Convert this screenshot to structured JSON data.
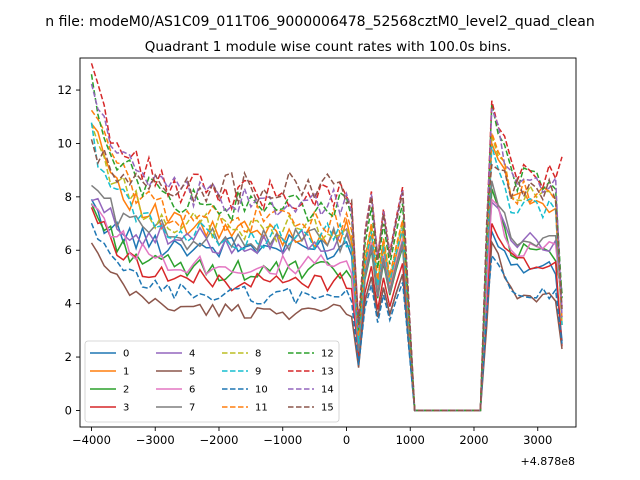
{
  "chart_data": {
    "type": "line",
    "suptitle": "n file: modeM0/AS1C09_011T06_9000006478_52568cztM0_level2_quad_clean",
    "title": "Quadrant 1 module wise count rates with 100.0s bins.",
    "xlabel": "",
    "ylabel": "",
    "x_offset_label": "+4.878e8",
    "xlim": [
      -4180,
      3600
    ],
    "ylim": [
      -0.62,
      13.2
    ],
    "xticks": [
      -4000,
      -3000,
      -2000,
      -1000,
      0,
      1000,
      2000,
      3000
    ],
    "xtick_labels": [
      "−4000",
      "−3000",
      "−2000",
      "−1000",
      "0",
      "1000",
      "2000",
      "3000"
    ],
    "yticks": [
      0,
      2,
      4,
      6,
      8,
      10,
      12
    ],
    "ytick_labels": [
      "0",
      "2",
      "4",
      "6",
      "8",
      "10",
      "12"
    ],
    "grid": false,
    "legend": {
      "placement": "lower-left",
      "ncol": 4
    },
    "series": [
      {
        "name": "0",
        "color": "#1f77b4",
        "dash": "solid",
        "level": 6.1,
        "start": 7.5,
        "dip": 1.8,
        "dropv": 5.0,
        "peak": 6.7,
        "tail": 5.3,
        "end": 2.6
      },
      {
        "name": "1",
        "color": "#ff7f0e",
        "dash": "solid",
        "level": 6.6,
        "start": 11.2,
        "dip": 2.6,
        "dropv": 6.6,
        "peak": 10.0,
        "tail": 7.8,
        "end": 3.2
      },
      {
        "name": "2",
        "color": "#2ca02c",
        "dash": "solid",
        "level": 5.2,
        "start": 7.7,
        "dip": 2.1,
        "dropv": 6.0,
        "peak": 8.3,
        "tail": 5.9,
        "end": 4.4
      },
      {
        "name": "3",
        "color": "#d62728",
        "dash": "solid",
        "level": 4.8,
        "start": 7.7,
        "dip": 2.0,
        "dropv": 5.4,
        "peak": 7.0,
        "tail": 5.6,
        "end": 2.4
      },
      {
        "name": "4",
        "color": "#9467bd",
        "dash": "solid",
        "level": 6.3,
        "start": 7.9,
        "dip": 2.3,
        "dropv": 6.1,
        "peak": 7.8,
        "tail": 6.3,
        "end": 3.9
      },
      {
        "name": "5",
        "color": "#8c564b",
        "dash": "solid",
        "level": 3.7,
        "start": 6.2,
        "dip": 1.6,
        "dropv": 5.0,
        "peak": 6.3,
        "tail": 4.3,
        "end": 2.3
      },
      {
        "name": "6",
        "color": "#e377c2",
        "dash": "solid",
        "level": 5.4,
        "start": 8.0,
        "dip": 2.3,
        "dropv": 6.3,
        "peak": 7.9,
        "tail": 6.1,
        "end": 3.9
      },
      {
        "name": "7",
        "color": "#7f7f7f",
        "dash": "solid",
        "level": 6.4,
        "start": 8.6,
        "dip": 2.2,
        "dropv": 6.2,
        "peak": 8.6,
        "tail": 6.2,
        "end": 4.4
      },
      {
        "name": "8",
        "color": "#bcbd22",
        "dash": "dashed",
        "level": 6.8,
        "start": 10.7,
        "dip": 2.7,
        "dropv": 6.9,
        "peak": 10.3,
        "tail": 8.0,
        "end": 3.3
      },
      {
        "name": "9",
        "color": "#17becf",
        "dash": "dashed",
        "level": 6.5,
        "start": 10.3,
        "dip": 2.5,
        "dropv": 6.7,
        "peak": 9.9,
        "tail": 7.6,
        "end": 3.2
      },
      {
        "name": "10",
        "color": "#1f77b4",
        "dash": "dashed",
        "level": 4.3,
        "start": 6.8,
        "dip": 1.7,
        "dropv": 4.7,
        "peak": 5.8,
        "tail": 4.4,
        "end": 2.5
      },
      {
        "name": "11",
        "color": "#ff7f0e",
        "dash": "dashed",
        "level": 7.1,
        "start": 11.6,
        "dip": 2.8,
        "dropv": 7.0,
        "peak": 10.4,
        "tail": 8.2,
        "end": 3.4
      },
      {
        "name": "12",
        "color": "#2ca02c",
        "dash": "dashed",
        "level": 7.6,
        "start": 12.0,
        "dip": 3.0,
        "dropv": 7.6,
        "peak": 11.5,
        "tail": 8.6,
        "end": 4.2
      },
      {
        "name": "13",
        "color": "#d62728",
        "dash": "dashed",
        "level": 8.1,
        "start": 12.6,
        "dip": 3.3,
        "dropv": 8.2,
        "peak": 11.6,
        "tail": 8.8,
        "end": 9.5
      },
      {
        "name": "14",
        "color": "#9467bd",
        "dash": "dashed",
        "level": 7.8,
        "start": 12.3,
        "dip": 3.1,
        "dropv": 8.1,
        "peak": 11.3,
        "tail": 8.4,
        "end": 3.5
      },
      {
        "name": "15",
        "color": "#8c564b",
        "dash": "dashed",
        "level": 8.3,
        "start": 9.6,
        "dip": 3.2,
        "dropv": 8.0,
        "peak": 9.2,
        "tail": 8.3,
        "end": 3.8
      }
    ]
  }
}
